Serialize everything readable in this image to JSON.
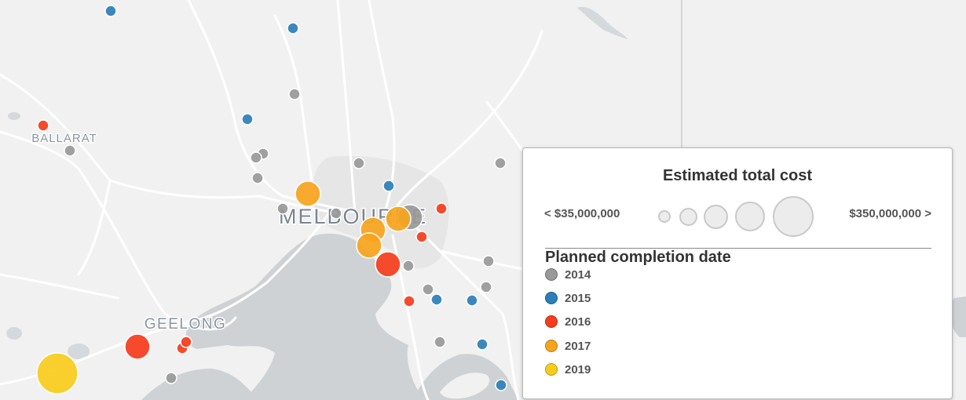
{
  "map": {
    "place_labels": [
      {
        "id": "ballarat",
        "text": "BALLARAT"
      },
      {
        "id": "geelong",
        "text": "GEELONG"
      },
      {
        "id": "melbourne",
        "text": "MELBOURNE"
      }
    ]
  },
  "legend": {
    "size_title": "Estimated total cost",
    "size_min_label": "< $35,000,000",
    "size_max_label": "$350,000,000 >",
    "color_title": "Planned completion date",
    "categories": [
      {
        "label": "2014",
        "color": "#999999"
      },
      {
        "label": "2015",
        "color": "#2c7fb8"
      },
      {
        "label": "2016",
        "color": "#f63c1c"
      },
      {
        "label": "2017",
        "color": "#f7a41d"
      },
      {
        "label": "2019",
        "color": "#f8cc1b"
      }
    ]
  },
  "projects": [
    {
      "year": "2015",
      "cost": "small"
    },
    {
      "year": "2015",
      "cost": "small"
    },
    {
      "year": "2014",
      "cost": "small"
    },
    {
      "year": "2015",
      "cost": "small"
    },
    {
      "year": "2016",
      "cost": "small"
    },
    {
      "year": "2014",
      "cost": "small"
    },
    {
      "year": "2014",
      "cost": "small"
    },
    {
      "year": "2014",
      "cost": "small"
    },
    {
      "year": "2014",
      "cost": "small"
    },
    {
      "year": "2014",
      "cost": "small"
    },
    {
      "year": "2017",
      "cost": "medium"
    },
    {
      "year": "2015",
      "cost": "small"
    },
    {
      "year": "2014",
      "cost": "small"
    },
    {
      "year": "2014",
      "cost": "small"
    },
    {
      "year": "2014",
      "cost": "medium"
    },
    {
      "year": "2017",
      "cost": "medium"
    },
    {
      "year": "2016",
      "cost": "small"
    },
    {
      "year": "2017",
      "cost": "medium"
    },
    {
      "year": "2016",
      "cost": "small"
    },
    {
      "year": "2017",
      "cost": "medium"
    },
    {
      "year": "2016",
      "cost": "medium"
    },
    {
      "year": "2014",
      "cost": "small"
    },
    {
      "year": "2014",
      "cost": "small"
    },
    {
      "year": "2016",
      "cost": "small"
    },
    {
      "year": "2015",
      "cost": "small"
    },
    {
      "year": "2014",
      "cost": "small"
    },
    {
      "year": "2014",
      "cost": "small"
    },
    {
      "year": "2015",
      "cost": "small"
    },
    {
      "year": "2014",
      "cost": "small"
    },
    {
      "year": "2015",
      "cost": "small"
    },
    {
      "year": "2015",
      "cost": "small"
    },
    {
      "year": "2014",
      "cost": "small"
    },
    {
      "year": "2016",
      "cost": "medium"
    },
    {
      "year": "2016",
      "cost": "small"
    },
    {
      "year": "2016",
      "cost": "small"
    },
    {
      "year": "2014",
      "cost": "small"
    },
    {
      "year": "2019",
      "cost": "large"
    }
  ]
}
